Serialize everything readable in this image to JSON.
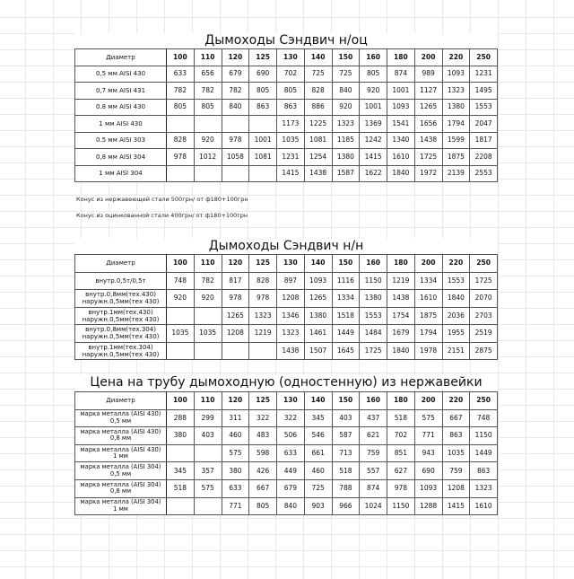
{
  "columns": [
    "100",
    "110",
    "120",
    "125",
    "130",
    "140",
    "150",
    "160",
    "180",
    "200",
    "220",
    "250"
  ],
  "table1": {
    "title": "Дымоходы Сэндвич н/оц",
    "header_label": "Диаметр",
    "rows": [
      {
        "label": "0,5 мм AISI 430",
        "values": [
          "633",
          "656",
          "679",
          "690",
          "702",
          "725",
          "725",
          "805",
          "874",
          "989",
          "1093",
          "1231"
        ]
      },
      {
        "label": "0,7 мм AISI 431",
        "values": [
          "782",
          "782",
          "782",
          "805",
          "805",
          "828",
          "840",
          "920",
          "1001",
          "1127",
          "1323",
          "1495"
        ]
      },
      {
        "label": "0.8 мм AISI 430",
        "values": [
          "805",
          "805",
          "840",
          "863",
          "863",
          "886",
          "920",
          "1001",
          "1093",
          "1265",
          "1380",
          "1553"
        ]
      },
      {
        "label": "1 мм AISI 430",
        "values": [
          "",
          "",
          "",
          "",
          "1173",
          "1225",
          "1323",
          "1369",
          "1541",
          "1656",
          "1794",
          "2047"
        ]
      },
      {
        "label": "0.5 мм AISI 303",
        "values": [
          "828",
          "920",
          "978",
          "1001",
          "1035",
          "1081",
          "1185",
          "1242",
          "1340",
          "1438",
          "1599",
          "1817"
        ]
      },
      {
        "label": "0,8 мм AISI 304",
        "values": [
          "978",
          "1012",
          "1058",
          "1081",
          "1231",
          "1254",
          "1380",
          "1415",
          "1610",
          "1725",
          "1875",
          "2208"
        ]
      },
      {
        "label": "1 мм AISI 304",
        "values": [
          "",
          "",
          "",
          "",
          "1415",
          "1438",
          "1587",
          "1622",
          "1840",
          "1972",
          "2139",
          "2553"
        ]
      }
    ]
  },
  "notes": [
    "Конус из нержавеющей стали 500грн/ от ф180+100грн",
    "Конус из оцинкованной стали 400грн/ от ф180+100грн"
  ],
  "table2": {
    "title": "Дымоходы Сэндвич н/н",
    "header_label": "Диаметр",
    "rows": [
      {
        "label": "внутр.0,5т/0,5т",
        "values": [
          "748",
          "782",
          "817",
          "828",
          "897",
          "1093",
          "1116",
          "1150",
          "1219",
          "1334",
          "1553",
          "1725"
        ]
      },
      {
        "label": "внутр.0,8мм(тех.430)\nнаружн.0,5мм(тех 430)",
        "values": [
          "920",
          "920",
          "978",
          "978",
          "1208",
          "1265",
          "1334",
          "1380",
          "1438",
          "1610",
          "1840",
          "2070"
        ]
      },
      {
        "label": "внутр.1мм(тех.430)\nнаружн.0,5мм(тех 430)",
        "values": [
          "",
          "",
          "1265",
          "1323",
          "1346",
          "1380",
          "1518",
          "1553",
          "1754",
          "1875",
          "2036",
          "2703"
        ]
      },
      {
        "label": "внутр.0,8мм(тех.304)\nнаружн.0,5мм(тех 430)",
        "values": [
          "1035",
          "1035",
          "1208",
          "1219",
          "1323",
          "1461",
          "1449",
          "1484",
          "1679",
          "1794",
          "1955",
          "2519"
        ]
      },
      {
        "label": "внутр.1мм(тех.304)\nнаружн.0,5мм(тех 430)",
        "values": [
          "",
          "",
          "",
          "",
          "1438",
          "1507",
          "1645",
          "1725",
          "1840",
          "1978",
          "2151",
          "2875"
        ]
      }
    ]
  },
  "table3": {
    "title": "Цена на трубу дымоходную (одностенную) из нержавейки",
    "header_label": "Диаметр",
    "rows": [
      {
        "label": "марка металла (AISI 430)\n0,5 мм",
        "values": [
          "288",
          "299",
          "311",
          "322",
          "322",
          "345",
          "403",
          "437",
          "518",
          "575",
          "667",
          "748"
        ]
      },
      {
        "label": "марка металла (AISI 430)\n0,8 мм",
        "values": [
          "380",
          "403",
          "460",
          "483",
          "506",
          "546",
          "587",
          "621",
          "702",
          "771",
          "863",
          "1150"
        ]
      },
      {
        "label": "марка металла (AISI 430)\n1 мм",
        "values": [
          "",
          "",
          "575",
          "598",
          "633",
          "661",
          "713",
          "759",
          "851",
          "943",
          "1035",
          "1449"
        ]
      },
      {
        "label": "марка металла (AISI 304)\n0,5 мм",
        "values": [
          "345",
          "357",
          "380",
          "426",
          "449",
          "460",
          "518",
          "557",
          "627",
          "690",
          "759",
          "863"
        ]
      },
      {
        "label": "марка металла (AISI 304)\n0,8 мм",
        "values": [
          "518",
          "575",
          "633",
          "667",
          "679",
          "725",
          "788",
          "874",
          "978",
          "1093",
          "1208",
          "1323"
        ]
      },
      {
        "label": "марка металла (AISI 304)\n1 мм",
        "values": [
          "",
          "",
          "771",
          "805",
          "840",
          "903",
          "966",
          "1024",
          "1150",
          "1288",
          "1415",
          "1610"
        ]
      }
    ]
  }
}
